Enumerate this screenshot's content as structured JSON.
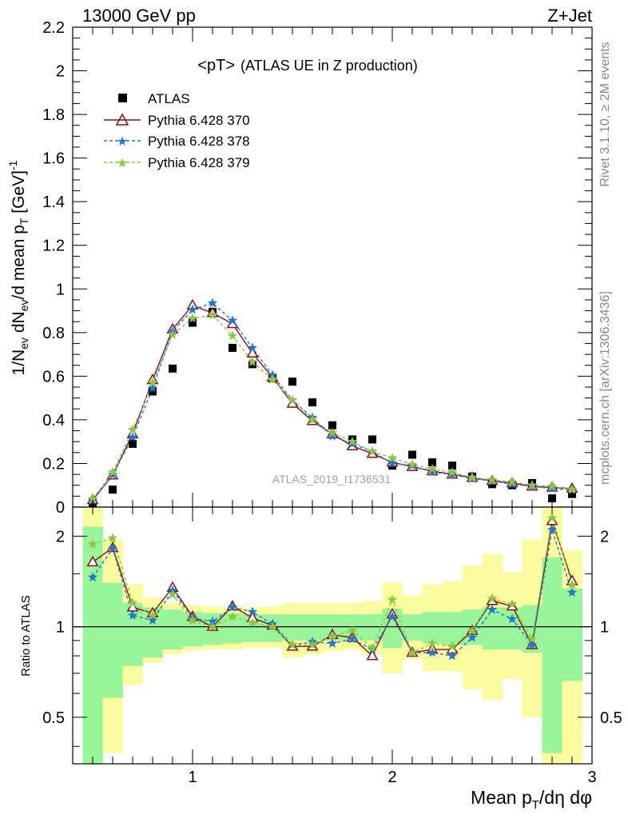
{
  "header": {
    "left": "13000 GeV pp",
    "right": "Z+Jet"
  },
  "title": {
    "main": "<pT>",
    "sub": "(ATLAS UE in Z production)"
  },
  "side_labels": {
    "rivet": "Rivet 3.1.10, ≥ 2M events",
    "mcplots": "mcplots.cern.ch [arXiv:1306.3436]"
  },
  "analysis_id": "ATLAS_2019_I1736531",
  "axes": {
    "ylabel_top": "1/N_ev dN_ev/d mean p_T [GeV]^-1",
    "ylabel_ratio": "Ratio to ATLAS",
    "xlabel": "Mean p_T/dη dφ"
  },
  "colors": {
    "data": "#000000",
    "p370": "#8b0f16",
    "p378": "#1f77d4",
    "p379": "#8cc63f",
    "band_inner": "#99f599",
    "band_outer": "#fbfb9f"
  },
  "chart_data": [
    {
      "type": "scatter",
      "panel": "main",
      "xlim": [
        0.4,
        3.0
      ],
      "ylim": [
        0,
        2.2
      ],
      "yticks": [
        "0",
        "0.2",
        "0.4",
        "0.6",
        "0.8",
        "1",
        "1.2",
        "1.4",
        "1.6",
        "1.8",
        "2",
        "2.2"
      ],
      "xticks": [
        "1",
        "2",
        "3"
      ],
      "x": [
        0.5,
        0.6,
        0.7,
        0.8,
        0.9,
        1.0,
        1.1,
        1.2,
        1.3,
        1.4,
        1.5,
        1.6,
        1.7,
        1.8,
        1.9,
        2.0,
        2.1,
        2.2,
        2.3,
        2.4,
        2.5,
        2.6,
        2.7,
        2.8,
        2.9
      ],
      "series": [
        {
          "name": "ATLAS",
          "key": "data",
          "values": [
            0.02,
            0.08,
            0.29,
            0.53,
            0.635,
            0.845,
            0.895,
            0.73,
            0.655,
            0.59,
            0.575,
            0.48,
            0.375,
            0.31,
            0.31,
            0.19,
            0.24,
            0.205,
            0.19,
            0.14,
            0.105,
            0.1,
            0.11,
            0.04,
            0.06
          ]
        },
        {
          "name": "Pythia 6.428 370",
          "key": "p370",
          "values": [
            0.033,
            0.146,
            0.335,
            0.583,
            0.815,
            0.925,
            0.89,
            0.84,
            0.705,
            0.595,
            0.475,
            0.395,
            0.335,
            0.28,
            0.245,
            0.205,
            0.185,
            0.165,
            0.15,
            0.135,
            0.12,
            0.11,
            0.095,
            0.09,
            0.085
          ]
        },
        {
          "name": "Pythia 6.428 378",
          "key": "p378",
          "values": [
            0.03,
            0.148,
            0.32,
            0.545,
            0.805,
            0.905,
            0.935,
            0.855,
            0.73,
            0.605,
            0.49,
            0.41,
            0.325,
            0.29,
            0.255,
            0.2,
            0.19,
            0.16,
            0.15,
            0.13,
            0.12,
            0.105,
            0.095,
            0.085,
            0.078
          ]
        },
        {
          "name": "Pythia 6.428 379",
          "key": "p379",
          "values": [
            0.038,
            0.16,
            0.355,
            0.57,
            0.79,
            0.865,
            0.88,
            0.785,
            0.665,
            0.585,
            0.49,
            0.4,
            0.34,
            0.3,
            0.255,
            0.225,
            0.195,
            0.175,
            0.16,
            0.135,
            0.125,
            0.115,
            0.1,
            0.095,
            0.08
          ]
        }
      ]
    },
    {
      "type": "line",
      "panel": "ratio",
      "scale": "log",
      "xlim": [
        0.4,
        3.0
      ],
      "ylim": [
        0.35,
        2.5
      ],
      "yticks": [
        "0.5",
        "1",
        "2"
      ],
      "xticks": [
        "1",
        "2",
        "3"
      ],
      "x": [
        0.5,
        0.6,
        0.7,
        0.8,
        0.9,
        1.0,
        1.1,
        1.2,
        1.3,
        1.4,
        1.5,
        1.6,
        1.7,
        1.8,
        1.9,
        2.0,
        2.1,
        2.2,
        2.3,
        2.4,
        2.5,
        2.6,
        2.7,
        2.8,
        2.9
      ],
      "bin_edges": [
        0.45,
        0.55,
        0.65,
        0.75,
        0.85,
        0.95,
        1.05,
        1.15,
        1.25,
        1.35,
        1.45,
        1.55,
        1.65,
        1.75,
        1.85,
        1.95,
        2.05,
        2.15,
        2.25,
        2.35,
        2.45,
        2.55,
        2.65,
        2.75,
        2.85,
        2.95
      ],
      "band_inner_low": [
        0.3,
        0.58,
        0.74,
        0.79,
        0.84,
        0.86,
        0.87,
        0.88,
        0.89,
        0.89,
        0.9,
        0.9,
        0.9,
        0.9,
        0.9,
        0.85,
        0.9,
        0.88,
        0.87,
        0.87,
        0.84,
        0.84,
        0.82,
        0.38,
        0.66
      ],
      "band_inner_high": [
        2.15,
        1.4,
        1.2,
        1.16,
        1.14,
        1.12,
        1.11,
        1.11,
        1.1,
        1.1,
        1.1,
        1.1,
        1.1,
        1.1,
        1.1,
        1.15,
        1.1,
        1.12,
        1.12,
        1.14,
        1.16,
        1.16,
        1.18,
        1.7,
        1.34
      ],
      "band_outer_low": [
        0.3,
        0.38,
        0.64,
        0.76,
        0.81,
        0.83,
        0.84,
        0.84,
        0.85,
        0.85,
        0.79,
        0.81,
        0.83,
        0.84,
        0.81,
        0.7,
        0.78,
        0.71,
        0.71,
        0.62,
        0.57,
        0.67,
        0.5,
        0.35,
        0.35
      ],
      "band_outer_high": [
        2.5,
        1.95,
        1.38,
        1.25,
        1.2,
        1.18,
        1.17,
        1.17,
        1.16,
        1.17,
        1.2,
        1.2,
        1.2,
        1.2,
        1.22,
        1.4,
        1.27,
        1.38,
        1.42,
        1.6,
        1.75,
        1.52,
        1.95,
        2.5,
        1.8
      ],
      "reference": 1,
      "series": [
        {
          "name": "Pythia 6.428 370",
          "key": "p370",
          "values": [
            1.64,
            1.83,
            1.16,
            1.11,
            1.35,
            1.08,
            1.0,
            1.17,
            1.07,
            1.01,
            0.86,
            0.86,
            0.94,
            0.92,
            0.8,
            1.1,
            0.82,
            0.84,
            0.84,
            0.97,
            1.22,
            1.17,
            0.87,
            2.25,
            1.42
          ]
        },
        {
          "name": "Pythia 6.428 378",
          "key": "p378",
          "values": [
            1.46,
            1.82,
            1.09,
            1.05,
            1.32,
            1.07,
            1.04,
            1.16,
            1.12,
            1.02,
            0.87,
            0.89,
            0.88,
            0.91,
            0.84,
            1.08,
            0.82,
            0.82,
            0.8,
            0.92,
            1.14,
            1.06,
            0.87,
            2.1,
            1.3
          ]
        },
        {
          "name": "Pythia 6.428 379",
          "key": "p379",
          "values": [
            1.88,
            1.97,
            1.2,
            1.09,
            1.28,
            1.05,
            1.0,
            1.08,
            1.03,
            1.0,
            0.87,
            0.87,
            0.93,
            0.97,
            0.85,
            1.23,
            0.82,
            0.88,
            0.86,
            0.97,
            1.24,
            1.19,
            0.91,
            2.3,
            1.38
          ]
        }
      ]
    }
  ]
}
